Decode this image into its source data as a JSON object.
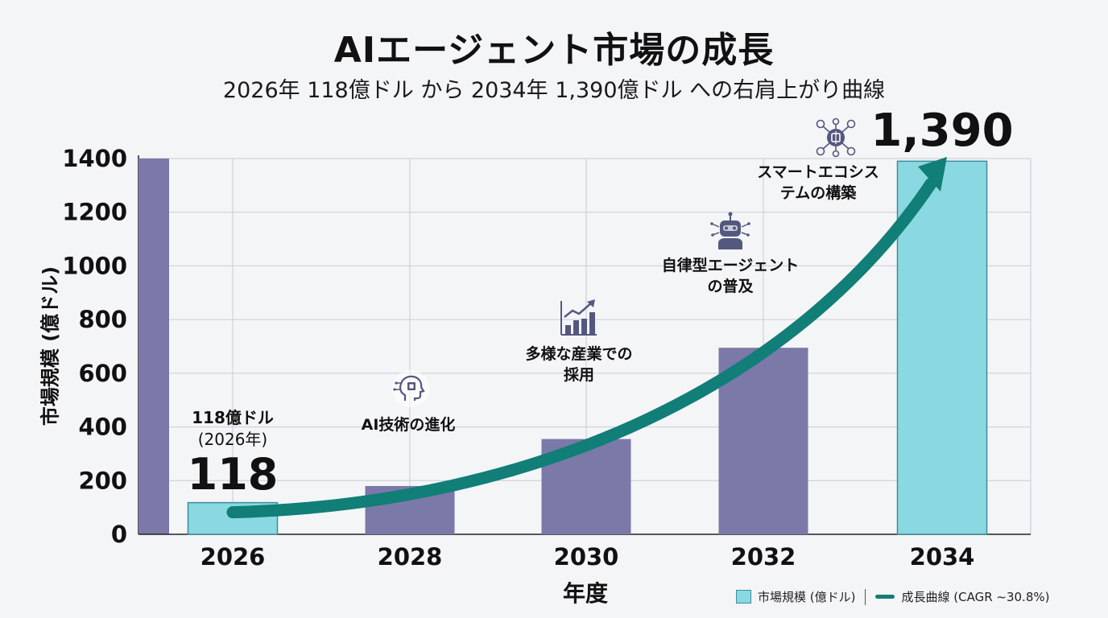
{
  "title": "AIエージェント市場の成長",
  "subtitle": "2026年 118億ドル から 2034年 1,390億ドル への右肩上がり曲線",
  "colors": {
    "bar": "#7b79a8",
    "bar_highlight": "#8ad8e2",
    "bar_highlight_border": "#3c8d99",
    "curve": "#117e78",
    "grid": "#c9ccd2",
    "icon": "#55587e"
  },
  "chart_data": {
    "type": "bar",
    "xlabel": "年度",
    "ylabel": "市場規模 (億ドル)",
    "ylim": [
      0,
      1400
    ],
    "yticks": [
      "0",
      "200",
      "400",
      "600",
      "800",
      "1000",
      "1200",
      "1400"
    ],
    "categories": [
      "2026",
      "2028",
      "2030",
      "2032",
      "2034"
    ],
    "series": [
      {
        "name": "市場規模 (億ドル)",
        "values": [
          118,
          180,
          355,
          695,
          1390
        ]
      }
    ],
    "highlighted": [
      "2026",
      "2034"
    ],
    "curve": {
      "name": "成長曲線 (CAGR ~30.8%)",
      "from": 118,
      "to": 1390
    },
    "legend_position": "bottom-right",
    "grid": true
  },
  "labels": {
    "first_value_title": "118億ドル",
    "first_value_year": "(2026年)",
    "first_value_big": "118",
    "last_value_big": "1,390"
  },
  "annotations": [
    {
      "text": "AI技術の進化",
      "icon": "ai-head-icon"
    },
    {
      "text": "多様な産業での\n採用",
      "icon": "growth-chart-icon"
    },
    {
      "text": "自律型エージェント\nの普及",
      "icon": "robot-icon"
    },
    {
      "text": "スマートエコシス\nテムの構築",
      "icon": "network-icon"
    }
  ],
  "legend": {
    "bar_label": "市場規模 (億ドル)",
    "curve_label": "成長曲線 (CAGR ~30.8%)"
  }
}
